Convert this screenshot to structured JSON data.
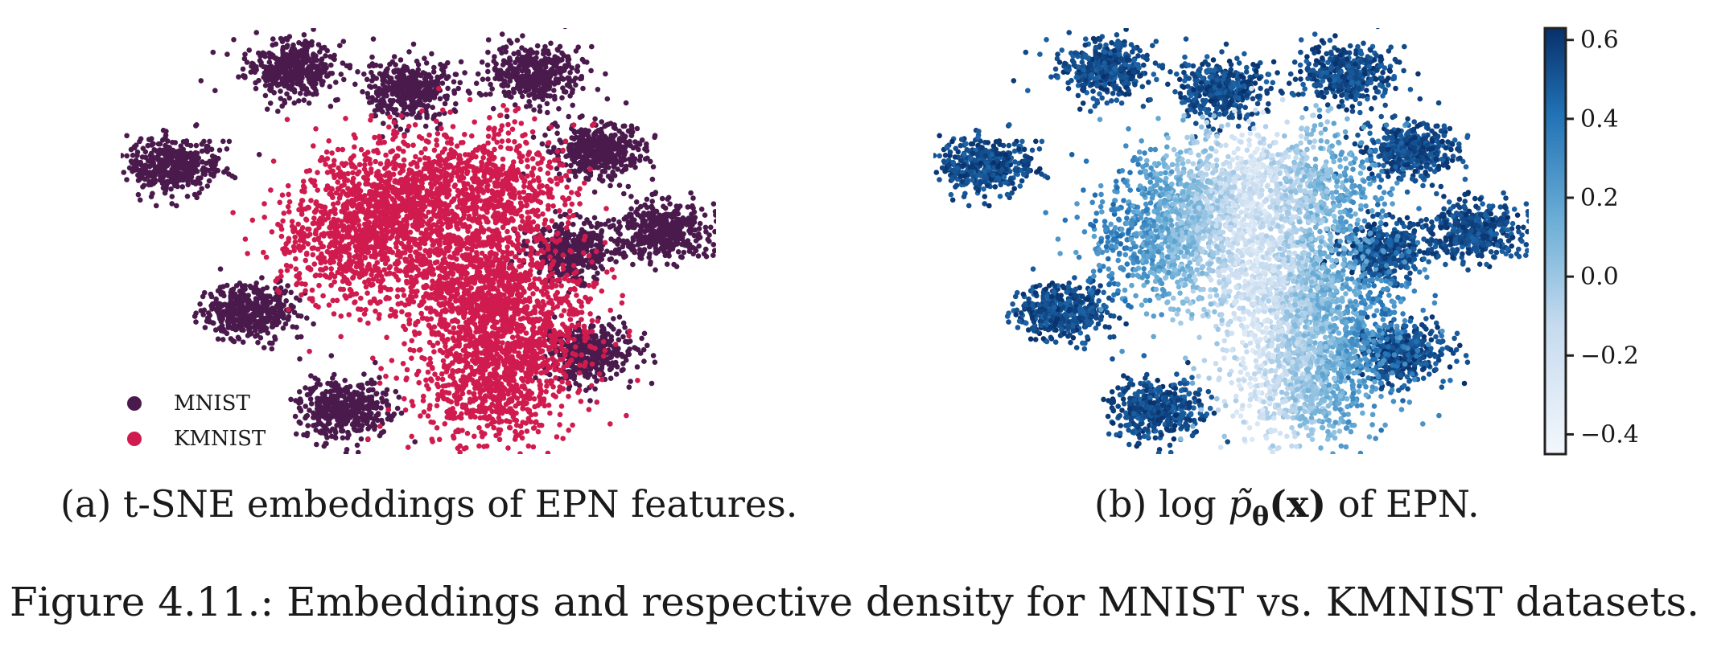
{
  "colors": {
    "mnist": "#4a1a4d",
    "kmnist": "#d01b4e",
    "density_low": "#f3f7fc",
    "density_high": "#0b3a79"
  },
  "chart_data": [
    {
      "type": "scatter",
      "title": "",
      "xlabel": "",
      "ylabel": "",
      "grid": false,
      "legend_placement": "bottom-left",
      "series": [
        {
          "name": "MNIST",
          "color": "#4a1a4d",
          "clusters": [
            [
              -8,
              9
            ],
            [
              -2.5,
              8
            ],
            [
              3.5,
              8.7
            ],
            [
              -13.5,
              4.2
            ],
            [
              6.5,
              5
            ],
            [
              9.5,
              1
            ],
            [
              5.2,
              0
            ],
            [
              -10,
              -3
            ],
            [
              6,
              -5
            ],
            [
              -5.5,
              -7.8
            ]
          ]
        },
        {
          "name": "KMNIST",
          "color": "#d01b4e",
          "clusters": [
            [
              -3,
              2.5
            ],
            [
              1.5,
              3
            ],
            [
              -5,
              0.5
            ],
            [
              0.5,
              -1.5
            ],
            [
              2.5,
              -3.5
            ],
            [
              1.5,
              -6.5
            ]
          ]
        }
      ],
      "xlim": [
        -16,
        12
      ],
      "ylim": [
        -10,
        11
      ]
    },
    {
      "type": "scatter",
      "title": "",
      "xlabel": "",
      "ylabel": "",
      "grid": false,
      "colormap": "Blues",
      "colorbar": {
        "ticks": [
          "0.6",
          "0.4",
          "0.2",
          "0.0",
          "−0.2",
          "−0.4"
        ],
        "tick_values": [
          0.6,
          0.4,
          0.2,
          0.0,
          -0.2,
          -0.4
        ],
        "range": [
          -0.45,
          0.63
        ]
      },
      "xlim": [
        -16,
        12
      ],
      "ylim": [
        -10,
        11
      ]
    }
  ],
  "legend": {
    "items": [
      {
        "label": "MNIST"
      },
      {
        "label": "KMNIST"
      }
    ]
  },
  "captions": {
    "a": "(a) t-SNE embeddings of EPN features.",
    "b_prefix": "(b) log ",
    "b_p": "p̃",
    "b_theta": "θ",
    "b_x": "(x)",
    "b_suffix": " of EPN.",
    "figure": "Figure 4.11.: Embeddings and respective density for MNIST vs. KMNIST datasets."
  }
}
